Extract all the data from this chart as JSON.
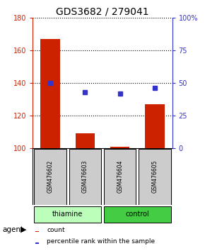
{
  "title": "GDS3682 / 279041",
  "samples": [
    "GSM476602",
    "GSM476603",
    "GSM476604",
    "GSM476605"
  ],
  "counts": [
    167,
    109,
    101,
    127
  ],
  "percentiles": [
    50,
    43,
    42,
    46
  ],
  "ylim_left": [
    100,
    180
  ],
  "ylim_right": [
    0,
    100
  ],
  "yticks_left": [
    100,
    120,
    140,
    160,
    180
  ],
  "yticks_right": [
    0,
    25,
    50,
    75,
    100
  ],
  "yticklabels_right": [
    "0",
    "25",
    "50",
    "75",
    "100%"
  ],
  "bar_color": "#cc2200",
  "dot_color": "#3333cc",
  "bar_base": 100,
  "groups": [
    {
      "label": "thiamine",
      "indices": [
        0,
        1
      ],
      "color": "#bbffbb"
    },
    {
      "label": "control",
      "indices": [
        2,
        3
      ],
      "color": "#44cc44"
    }
  ],
  "agent_label": "agent",
  "legend_count_label": "count",
  "legend_pct_label": "percentile rank within the sample",
  "grid_color": "#000000",
  "sample_box_color": "#cccccc",
  "title_fontsize": 10,
  "axis_label_color_left": "#cc2200",
  "axis_label_color_right": "#3333cc",
  "fig_width": 2.9,
  "fig_height": 3.54,
  "dpi": 100
}
